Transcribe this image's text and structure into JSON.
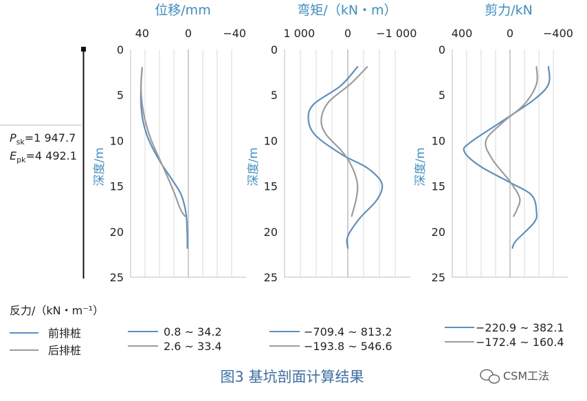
{
  "figure": {
    "caption": "图3   基坑剖面计算结果",
    "watermark": "CSM工法",
    "reaction_label": "反力/（kN・m⁻¹）",
    "pile_label_psk": "=1 947.7",
    "pile_label_epk": "=4 492.1",
    "pile_label_psk_var": "P",
    "pile_label_psk_sub": "sk",
    "pile_label_epk_var": "E",
    "pile_label_epk_sub": "pk"
  },
  "legend": {
    "series": [
      {
        "name": "前排桩",
        "color": "#5b8fc3"
      },
      {
        "name": "后排桩",
        "color": "#9b9b9b"
      }
    ],
    "ranges": [
      [
        "0.8 ~ 34.2",
        "−709.4 ~ 813.2",
        "−220.9 ~ 382.1"
      ],
      [
        "2.6 ~ 33.4",
        "−193.8 ~ 546.6",
        "−172.4 ~ 160.4"
      ]
    ]
  },
  "chart_data": [
    {
      "type": "line",
      "title": "位移/mm",
      "ylabel": "深度/m",
      "xlim": [
        50,
        -50
      ],
      "ylim": [
        0,
        25
      ],
      "xticks": [
        40,
        0,
        -40
      ],
      "xtick_labels": [
        "40",
        "0",
        "−40"
      ],
      "yticks": [
        0,
        5,
        10,
        15,
        20,
        25
      ],
      "ytick_labels": [
        "0",
        "5",
        "10",
        "15",
        "20",
        "25"
      ],
      "grid": true,
      "series": [
        {
          "name": "前排桩",
          "color": "#5b8fc3",
          "points": [
            [
              40,
              2
            ],
            [
              41,
              4
            ],
            [
              41,
              6
            ],
            [
              39,
              8
            ],
            [
              34,
              10
            ],
            [
              24,
              12.4
            ],
            [
              13,
              14.5
            ],
            [
              6,
              16
            ],
            [
              2,
              18
            ],
            [
              1,
              20
            ],
            [
              0.8,
              21.8
            ]
          ]
        },
        {
          "name": "后排桩",
          "color": "#9b9b9b",
          "points": [
            [
              40,
              2
            ],
            [
              41,
              4
            ],
            [
              40,
              6
            ],
            [
              37,
              8
            ],
            [
              32,
              10
            ],
            [
              25,
              12
            ],
            [
              18,
              14
            ],
            [
              12,
              15.8
            ],
            [
              7,
              17.5
            ],
            [
              3,
              18.3
            ]
          ]
        }
      ]
    },
    {
      "type": "line",
      "title": "弯矩/（kN・m）",
      "ylabel": "深度/m",
      "xlim": [
        1300,
        -1300
      ],
      "ylim": [
        0,
        25
      ],
      "xticks": [
        1000,
        0,
        -1000
      ],
      "xtick_labels": [
        "1 000",
        "0",
        "−1 000"
      ],
      "yticks": [
        0,
        5,
        10,
        15,
        20,
        25
      ],
      "ytick_labels": [
        "0",
        "5",
        "10",
        "15",
        "20",
        "25"
      ],
      "grid": true,
      "series": [
        {
          "name": "前排桩",
          "color": "#5b8fc3",
          "points": [
            [
              -200,
              1.9
            ],
            [
              150,
              4
            ],
            [
              700,
              6
            ],
            [
              810,
              7.7
            ],
            [
              650,
              9.5
            ],
            [
              100,
              11.6
            ],
            [
              -400,
              13
            ],
            [
              -700,
              14.7
            ],
            [
              -600,
              16.5
            ],
            [
              -250,
              18.5
            ],
            [
              0,
              20.5
            ],
            [
              0,
              21.8
            ]
          ]
        },
        {
          "name": "后排桩",
          "color": "#9b9b9b",
          "points": [
            [
              -400,
              1.9
            ],
            [
              -50,
              3.8
            ],
            [
              400,
              5.8
            ],
            [
              546,
              7.7
            ],
            [
              450,
              9.3
            ],
            [
              150,
              11
            ],
            [
              -50,
              12.5
            ],
            [
              -190,
              14.5
            ],
            [
              -180,
              16.2
            ],
            [
              -80,
              18.3
            ]
          ]
        }
      ]
    },
    {
      "type": "line",
      "title": "剪力/kN",
      "ylabel": "深度/m",
      "xlim": [
        480,
        -480
      ],
      "ylim": [
        0,
        25
      ],
      "xticks": [
        400,
        0,
        -400
      ],
      "xtick_labels": [
        "400",
        "0",
        "−400"
      ],
      "yticks": [
        0,
        5,
        10,
        15,
        20,
        25
      ],
      "ytick_labels": [
        "0",
        "5",
        "10",
        "15",
        "20",
        "25"
      ],
      "grid": true,
      "series": [
        {
          "name": "前排桩",
          "color": "#5b8fc3",
          "points": [
            [
              -320,
              1.9
            ],
            [
              -320,
              3.8
            ],
            [
              -200,
              5.5
            ],
            [
              80,
              8
            ],
            [
              330,
              10.2
            ],
            [
              380,
              11.2
            ],
            [
              250,
              12.8
            ],
            [
              0,
              14.6
            ],
            [
              -180,
              16
            ],
            [
              -220,
              17.8
            ],
            [
              -200,
              19
            ],
            [
              -50,
              21
            ],
            [
              -20,
              21.8
            ]
          ]
        },
        {
          "name": "后排桩",
          "color": "#9b9b9b",
          "points": [
            [
              -220,
              1.9
            ],
            [
              -220,
              3.8
            ],
            [
              -120,
              6
            ],
            [
              60,
              8
            ],
            [
              200,
              10
            ],
            [
              150,
              12
            ],
            [
              0,
              14.5
            ],
            [
              -80,
              16.3
            ],
            [
              -60,
              17.5
            ],
            [
              -30,
              18.3
            ]
          ]
        }
      ]
    }
  ]
}
